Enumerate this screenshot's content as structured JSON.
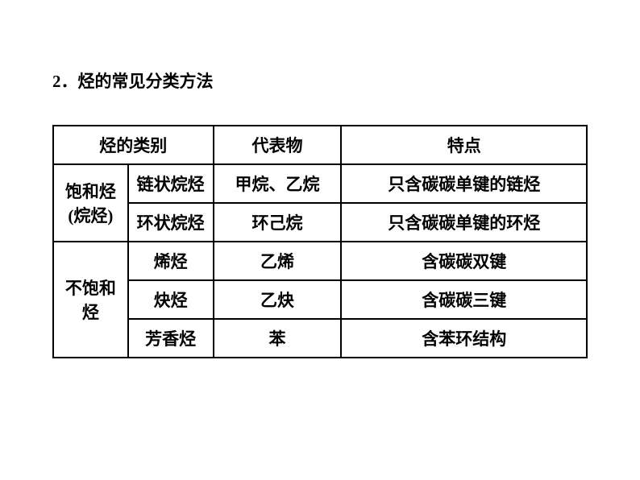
{
  "title": "2．烃的常见分类方法",
  "table": {
    "header": {
      "col1_2": "烃的类别",
      "col3": "代表物",
      "col4": "特点"
    },
    "rows": [
      {
        "group": "饱和烃(烷烃)",
        "sub": "链状烷烃",
        "rep": "甲烷、乙烷",
        "feature": "只含碳碳单键的链烃"
      },
      {
        "sub": "环状烷烃",
        "rep": "环己烷",
        "feature": "只含碳碳单键的环烃"
      },
      {
        "group": "不饱和烃",
        "sub": "烯烃",
        "rep": "乙烯",
        "feature": "含碳碳双键"
      },
      {
        "sub": "炔烃",
        "rep": "乙炔",
        "feature": "含碳碳三键"
      },
      {
        "sub": "芳香烃",
        "rep": "苯",
        "feature": "含苯环结构"
      }
    ]
  },
  "style": {
    "background_color": "#ffffff",
    "text_color": "#000000",
    "border_color": "#000000",
    "border_width": 2,
    "title_fontsize": 21,
    "cell_fontsize": 21,
    "font_family": "SimSun"
  }
}
